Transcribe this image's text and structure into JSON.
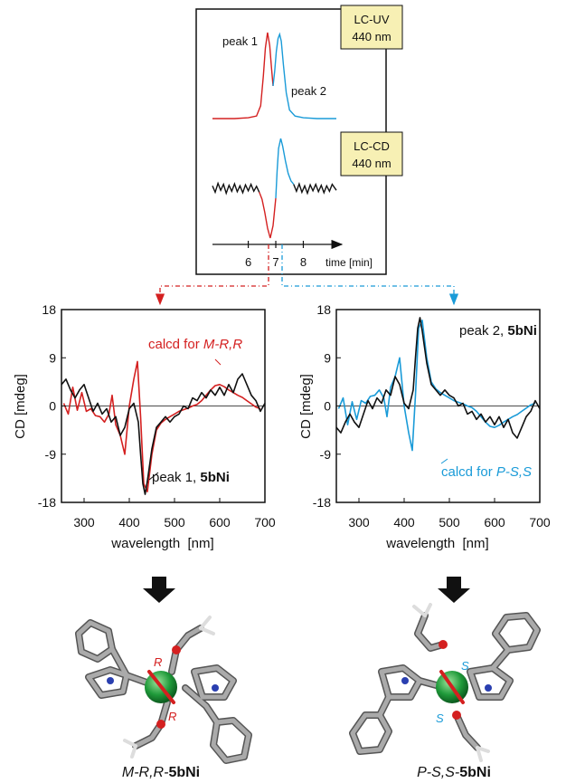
{
  "colors": {
    "red": "#d42020",
    "blue": "#1a9bd8",
    "black": "#111111",
    "badge": "#f7f0b4"
  },
  "chromatogram": {
    "uv_badge": [
      "LC-UV",
      "440 nm"
    ],
    "cd_badge": [
      "LC-CD",
      "440 nm"
    ],
    "peak1_label": "peak 1",
    "peak2_label": "peak 2",
    "time_label": "time [min]"
  },
  "chart_data": [
    {
      "type": "line",
      "name": "LC-UV trace",
      "x_ticks": [
        6,
        7,
        8
      ],
      "x_range": [
        4.7,
        9.2
      ],
      "series": [
        {
          "name": "peak 1",
          "color": "#d42020",
          "x": [
            4.7,
            5.5,
            6.0,
            6.3,
            6.45,
            6.55,
            6.62,
            6.7,
            6.78,
            6.84,
            6.9
          ],
          "y": [
            0.0,
            0.0,
            0.01,
            0.03,
            0.15,
            0.5,
            0.82,
            1.0,
            0.85,
            0.6,
            0.38
          ]
        },
        {
          "name": "peak 2",
          "color": "#1a9bd8",
          "x": [
            6.9,
            6.96,
            7.02,
            7.08,
            7.14,
            7.2,
            7.28,
            7.38,
            7.5,
            7.7,
            8.0,
            8.5,
            9.2
          ],
          "y": [
            0.38,
            0.55,
            0.78,
            0.93,
            0.98,
            0.9,
            0.62,
            0.3,
            0.1,
            0.03,
            0.01,
            0.0,
            0.0
          ]
        }
      ]
    },
    {
      "type": "line",
      "name": "LC-CD trace",
      "x_ticks": [
        6,
        7,
        8
      ],
      "x_range": [
        4.7,
        9.2
      ],
      "series": [
        {
          "name": "noise left",
          "color": "#111111",
          "x": [
            4.7,
            4.8,
            4.9,
            5.0,
            5.1,
            5.2,
            5.3,
            5.4,
            5.5,
            5.6,
            5.7,
            5.8,
            5.9,
            6.0,
            6.1,
            6.2,
            6.3,
            6.4
          ],
          "y": [
            0.05,
            -0.08,
            0.1,
            -0.04,
            0.08,
            -0.1,
            0.06,
            -0.06,
            0.09,
            -0.07,
            0.05,
            -0.09,
            0.07,
            -0.05,
            0.08,
            -0.06,
            0.04,
            -0.08
          ]
        },
        {
          "name": "peak 1",
          "color": "#d42020",
          "x": [
            6.4,
            6.5,
            6.6,
            6.7,
            6.8,
            6.9,
            7.0
          ],
          "y": [
            -0.08,
            -0.22,
            -0.48,
            -0.8,
            -1.0,
            -0.75,
            -0.2
          ]
        },
        {
          "name": "peak 2",
          "color": "#1a9bd8",
          "x": [
            7.0,
            7.05,
            7.1,
            7.18,
            7.25,
            7.35,
            7.45,
            7.55,
            7.65
          ],
          "y": [
            -0.2,
            0.35,
            0.8,
            1.0,
            0.85,
            0.55,
            0.3,
            0.15,
            0.08
          ]
        },
        {
          "name": "noise right",
          "color": "#111111",
          "x": [
            7.65,
            7.75,
            7.85,
            7.95,
            8.05,
            8.15,
            8.25,
            8.35,
            8.45,
            8.55,
            8.65,
            8.75,
            8.85,
            8.95,
            9.05,
            9.2
          ],
          "y": [
            0.08,
            -0.06,
            0.09,
            -0.08,
            0.05,
            -0.1,
            0.07,
            -0.05,
            0.08,
            -0.07,
            0.06,
            -0.09,
            0.05,
            -0.06,
            0.08,
            -0.04
          ]
        }
      ]
    },
    {
      "type": "line",
      "name": "left CD spectrum",
      "xlabel": "wavelength  [nm]",
      "ylabel": "CD [mdeg]",
      "xlim": [
        250,
        700
      ],
      "ylim": [
        -18,
        18
      ],
      "x_ticks": [
        300,
        400,
        500,
        600,
        700
      ],
      "y_ticks": [
        18,
        9,
        0,
        -9,
        -18
      ],
      "annotations": [
        {
          "text": "calcd for ",
          "italic": "M-R,R",
          "color": "#d42020"
        },
        {
          "text": "peak 1, ",
          "bold": "5bNi",
          "color": "#111111"
        }
      ],
      "series": [
        {
          "name": "calcd for M-R,R",
          "color": "#d42020",
          "x": [
            255,
            265,
            275,
            285,
            295,
            305,
            315,
            325,
            335,
            345,
            355,
            362,
            370,
            380,
            390,
            400,
            410,
            418,
            425,
            432,
            440,
            450,
            460,
            470,
            480,
            490,
            500,
            510,
            520,
            530,
            540,
            550,
            560,
            570,
            580,
            590,
            600,
            610,
            620,
            630,
            640,
            650,
            660,
            670,
            680,
            690
          ],
          "y": [
            0.5,
            -1.5,
            3.5,
            -0.8,
            2.5,
            -1.0,
            -0.5,
            -1.8,
            -2.0,
            -3.0,
            -1.5,
            2.0,
            -3.5,
            -5.5,
            -9.0,
            0.0,
            5.0,
            8.3,
            -2.0,
            -14.5,
            -16.0,
            -9.0,
            -4.5,
            -3.2,
            -2.5,
            -2.0,
            -1.5,
            -1.0,
            -0.7,
            -0.4,
            0.0,
            0.3,
            1.0,
            2.0,
            3.0,
            3.8,
            4.0,
            3.6,
            3.0,
            2.5,
            2.0,
            1.6,
            1.0,
            0.4,
            -0.2,
            -0.5
          ]
        },
        {
          "name": "peak 1, 5bNi",
          "color": "#111111",
          "x": [
            250,
            260,
            270,
            280,
            290,
            300,
            310,
            320,
            330,
            340,
            350,
            360,
            370,
            380,
            390,
            400,
            410,
            420,
            425,
            430,
            435,
            440,
            450,
            460,
            470,
            480,
            490,
            500,
            510,
            520,
            530,
            540,
            550,
            560,
            570,
            580,
            590,
            600,
            610,
            620,
            630,
            640,
            650,
            660,
            670,
            680,
            690,
            700
          ],
          "y": [
            4.0,
            5.0,
            3.0,
            1.5,
            3.0,
            4.0,
            1.5,
            -1.0,
            0.5,
            -1.5,
            -0.5,
            -3.0,
            -2.0,
            -5.5,
            -4.0,
            -0.5,
            0.5,
            -3.0,
            -9.0,
            -14.5,
            -16.5,
            -14.0,
            -8.0,
            -4.0,
            -3.0,
            -2.0,
            -3.0,
            -2.0,
            -1.5,
            0.0,
            -0.5,
            1.5,
            1.0,
            2.5,
            1.5,
            3.0,
            2.0,
            3.5,
            2.0,
            4.0,
            2.5,
            5.0,
            6.0,
            4.0,
            2.0,
            1.0,
            -1.0,
            0.5
          ]
        }
      ]
    },
    {
      "type": "line",
      "name": "right CD spectrum",
      "xlabel": "wavelength  [nm]",
      "ylabel": "CD [mdeg]",
      "xlim": [
        250,
        700
      ],
      "ylim": [
        -18,
        18
      ],
      "x_ticks": [
        300,
        400,
        500,
        600,
        700
      ],
      "y_ticks": [
        18,
        9,
        0,
        -9,
        -18
      ],
      "annotations": [
        {
          "text": "peak 2, ",
          "bold": "5bNi",
          "color": "#111111"
        },
        {
          "text": "calcd for ",
          "italic": "P-S,S",
          "color": "#1a9bd8"
        }
      ],
      "series": [
        {
          "name": "calcd for P-S,S",
          "color": "#1a9bd8",
          "x": [
            255,
            265,
            275,
            285,
            295,
            305,
            315,
            325,
            335,
            345,
            355,
            362,
            370,
            380,
            390,
            400,
            410,
            418,
            425,
            432,
            440,
            450,
            460,
            470,
            480,
            490,
            500,
            510,
            520,
            530,
            540,
            550,
            560,
            570,
            580,
            590,
            600,
            610,
            620,
            630,
            640,
            650,
            660,
            670,
            680,
            690
          ],
          "y": [
            -0.5,
            1.5,
            -3.5,
            0.8,
            -2.5,
            1.0,
            0.5,
            1.8,
            2.0,
            3.0,
            1.5,
            -2.0,
            3.5,
            5.5,
            9.0,
            0.0,
            -5.0,
            -8.3,
            2.0,
            14.5,
            16.0,
            9.0,
            4.5,
            3.2,
            2.5,
            2.0,
            1.5,
            1.0,
            0.7,
            0.4,
            0.0,
            -0.3,
            -1.0,
            -2.0,
            -3.0,
            -3.8,
            -4.0,
            -3.6,
            -3.0,
            -2.5,
            -2.0,
            -1.6,
            -1.0,
            -0.4,
            0.2,
            0.5
          ]
        },
        {
          "name": "peak 2, 5bNi",
          "color": "#111111",
          "x": [
            250,
            260,
            270,
            280,
            290,
            300,
            310,
            320,
            330,
            340,
            350,
            360,
            370,
            380,
            390,
            400,
            410,
            420,
            425,
            430,
            435,
            440,
            450,
            460,
            470,
            480,
            490,
            500,
            510,
            520,
            530,
            540,
            550,
            560,
            570,
            580,
            590,
            600,
            610,
            620,
            630,
            640,
            650,
            660,
            670,
            680,
            690,
            700
          ],
          "y": [
            -4.0,
            -5.0,
            -3.0,
            -1.5,
            -3.0,
            -4.0,
            -1.5,
            1.0,
            -0.5,
            1.5,
            0.5,
            3.0,
            2.0,
            5.5,
            4.0,
            0.5,
            -0.5,
            3.0,
            9.0,
            14.5,
            16.5,
            14.0,
            8.0,
            4.0,
            3.0,
            2.0,
            3.0,
            2.0,
            1.5,
            0.0,
            0.5,
            -1.5,
            -1.0,
            -2.5,
            -1.5,
            -3.0,
            -2.0,
            -3.5,
            -2.0,
            -4.0,
            -2.5,
            -5.0,
            -6.0,
            -4.0,
            -2.0,
            -1.0,
            1.0,
            -0.5
          ]
        }
      ]
    }
  ],
  "molecules": {
    "left_label": {
      "italic": "M-R,R-",
      "bold": "5bNi"
    },
    "right_label": {
      "italic": "P-S,S-",
      "bold": "5bNi"
    },
    "left_stereo": [
      "R",
      "R"
    ],
    "right_stereo": [
      "S",
      "S"
    ]
  }
}
